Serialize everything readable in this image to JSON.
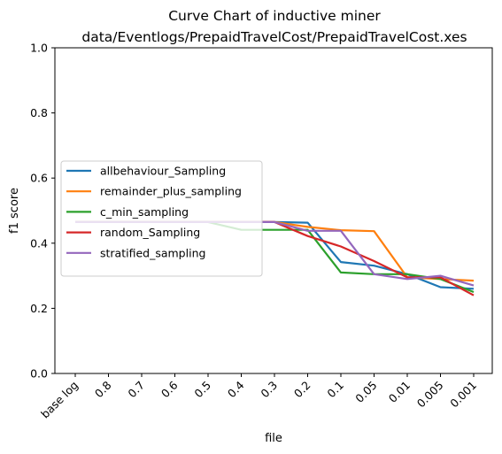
{
  "chart_data": {
    "type": "line",
    "title": "Curve Chart of inductive miner",
    "subtitle": "data/Eventlogs/PrepaidTravelCost/PrepaidTravelCost.xes",
    "xlabel": "file",
    "ylabel": "f1 score",
    "categories": [
      "base log",
      "0.8",
      "0.7",
      "0.6",
      "0.5",
      "0.4",
      "0.3",
      "0.2",
      "0.1",
      "0.05",
      "0.01",
      "0.005",
      "0.001"
    ],
    "ylim": [
      0.0,
      1.0
    ],
    "yticks": [
      "0.0",
      "0.2",
      "0.4",
      "0.6",
      "0.8",
      "1.0"
    ],
    "grid": false,
    "legend_position": "center-left",
    "series": [
      {
        "name": "allbehaviour_Sampling",
        "color": "#1f77b4",
        "values": [
          0.465,
          0.465,
          0.465,
          0.465,
          0.465,
          0.465,
          0.465,
          0.463,
          0.342,
          0.331,
          0.305,
          0.265,
          0.26
        ]
      },
      {
        "name": "remainder_plus_sampling",
        "color": "#ff7f0e",
        "values": [
          0.465,
          0.465,
          0.465,
          0.465,
          0.465,
          0.465,
          0.465,
          0.45,
          0.44,
          0.437,
          0.295,
          0.29,
          0.285
        ]
      },
      {
        "name": "c_min_sampling",
        "color": "#2ca02c",
        "values": [
          0.465,
          0.465,
          0.465,
          0.465,
          0.465,
          0.441,
          0.441,
          0.441,
          0.31,
          0.305,
          0.305,
          0.29,
          0.25
        ]
      },
      {
        "name": "random_Sampling",
        "color": "#d62728",
        "values": [
          0.465,
          0.465,
          0.465,
          0.465,
          0.465,
          0.465,
          0.465,
          0.422,
          0.39,
          0.345,
          0.295,
          0.295,
          0.24
        ]
      },
      {
        "name": "stratified_sampling",
        "color": "#9467bd",
        "values": [
          0.465,
          0.465,
          0.465,
          0.465,
          0.465,
          0.465,
          0.465,
          0.438,
          0.438,
          0.305,
          0.29,
          0.3,
          0.27
        ]
      }
    ]
  }
}
